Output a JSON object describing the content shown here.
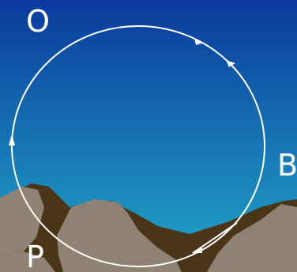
{
  "labels": {
    "o": "O",
    "b": "B",
    "p": "P"
  },
  "colors": {
    "sky_top": "#0a3a9c",
    "sky_bottom": "#22a8c8",
    "mountain_light": "#8f8274",
    "mountain_dark": "#4a3518",
    "path": "#ffffff"
  }
}
